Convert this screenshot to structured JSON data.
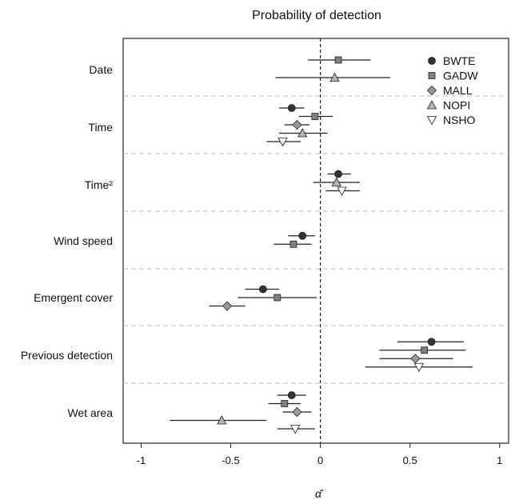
{
  "chart_data": {
    "type": "scatter",
    "title": "Probability of detection",
    "xlabel": "α̂",
    "xlim": [
      -1.1,
      1.05
    ],
    "x_ticks": [
      {
        "value": -1,
        "label": "-1"
      },
      {
        "value": -0.5,
        "label": "-0.5"
      },
      {
        "value": 0,
        "label": "0"
      },
      {
        "value": 0.5,
        "label": "0.5"
      },
      {
        "value": 1,
        "label": "1"
      }
    ],
    "categories": [
      "Date",
      "Time",
      "Time²",
      "Wind speed",
      "Emergent cover",
      "Previous detection",
      "Wet area"
    ],
    "reference_line": 0,
    "legend_position": "top-right",
    "series": [
      {
        "name": "BWTE",
        "marker": "circle",
        "color": "#333333",
        "points": [
          {
            "category": "Time",
            "estimate": -0.16,
            "lower": -0.23,
            "upper": -0.09
          },
          {
            "category": "Time²",
            "estimate": 0.1,
            "lower": 0.04,
            "upper": 0.17
          },
          {
            "category": "Wind speed",
            "estimate": -0.1,
            "lower": -0.18,
            "upper": -0.03
          },
          {
            "category": "Emergent cover",
            "estimate": -0.32,
            "lower": -0.42,
            "upper": -0.23
          },
          {
            "category": "Previous detection",
            "estimate": 0.62,
            "lower": 0.43,
            "upper": 0.8
          },
          {
            "category": "Wet area",
            "estimate": -0.16,
            "lower": -0.24,
            "upper": -0.08
          }
        ]
      },
      {
        "name": "GADW",
        "marker": "square",
        "color": "#808080",
        "points": [
          {
            "category": "Date",
            "estimate": 0.1,
            "lower": -0.07,
            "upper": 0.28
          },
          {
            "category": "Time",
            "estimate": -0.03,
            "lower": -0.12,
            "upper": 0.07
          },
          {
            "category": "Wind speed",
            "estimate": -0.15,
            "lower": -0.26,
            "upper": -0.05
          },
          {
            "category": "Emergent cover",
            "estimate": -0.24,
            "lower": -0.46,
            "upper": -0.02
          },
          {
            "category": "Previous detection",
            "estimate": 0.58,
            "lower": 0.33,
            "upper": 0.81
          },
          {
            "category": "Wet area",
            "estimate": -0.2,
            "lower": -0.29,
            "upper": -0.11
          }
        ]
      },
      {
        "name": "MALL",
        "marker": "diamond",
        "color": "#999999",
        "points": [
          {
            "category": "Time",
            "estimate": -0.13,
            "lower": -0.2,
            "upper": -0.06
          },
          {
            "category": "Emergent cover",
            "estimate": -0.52,
            "lower": -0.62,
            "upper": -0.42
          },
          {
            "category": "Previous detection",
            "estimate": 0.53,
            "lower": 0.33,
            "upper": 0.74
          },
          {
            "category": "Wet area",
            "estimate": -0.13,
            "lower": -0.21,
            "upper": -0.05
          }
        ]
      },
      {
        "name": "NOPI",
        "marker": "triangle-up",
        "color": "#b3b3b3",
        "points": [
          {
            "category": "Date",
            "estimate": 0.08,
            "lower": -0.25,
            "upper": 0.39
          },
          {
            "category": "Time",
            "estimate": -0.1,
            "lower": -0.23,
            "upper": 0.04
          },
          {
            "category": "Time²",
            "estimate": 0.09,
            "lower": -0.04,
            "upper": 0.22
          },
          {
            "category": "Wet area",
            "estimate": -0.55,
            "lower": -0.84,
            "upper": -0.3
          }
        ]
      },
      {
        "name": "NSHO",
        "marker": "triangle-down",
        "color": "#ffffff",
        "points": [
          {
            "category": "Time",
            "estimate": -0.21,
            "lower": -0.3,
            "upper": -0.11
          },
          {
            "category": "Time²",
            "estimate": 0.12,
            "lower": 0.03,
            "upper": 0.22
          },
          {
            "category": "Previous detection",
            "estimate": 0.55,
            "lower": 0.25,
            "upper": 0.85
          },
          {
            "category": "Wet area",
            "estimate": -0.14,
            "lower": -0.24,
            "upper": -0.03
          }
        ]
      }
    ]
  }
}
